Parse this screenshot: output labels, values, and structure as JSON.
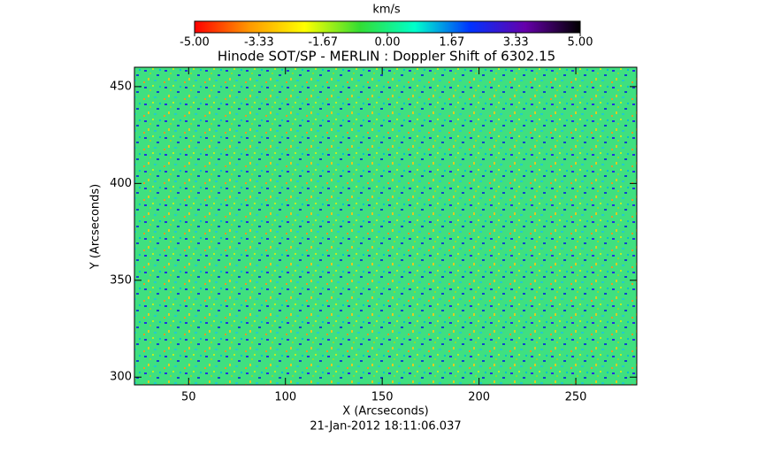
{
  "chart_data": {
    "type": "heatmap",
    "title": "Hinode SOT/SP - MERLIN : Doppler Shift of 6302.15",
    "xlabel": "X (Arcseconds)",
    "ylabel": "Y (Arcseconds)",
    "footer": "21-Jan-2012 18:11:06.037",
    "xlim": [
      22,
      281.5
    ],
    "xticks": [
      50,
      100,
      150,
      200,
      250
    ],
    "ylim": [
      296,
      460
    ],
    "yticks": [
      300,
      350,
      400,
      450
    ],
    "colorbar": {
      "label": "km/s",
      "lim": [
        -5,
        5
      ],
      "ticks": [
        {
          "value": -5,
          "label": "-5.00"
        },
        -3.33,
        -1.67,
        {
          "value": 0,
          "label": "0.00"
        },
        1.67,
        3.33,
        {
          "value": 5,
          "label": "5.00"
        }
      ],
      "colors": [
        "#ff0000",
        "#ff9900",
        "#ffff00",
        "#33dd33",
        "#00ffcc",
        "#0033ff",
        "#6600aa",
        "#000000"
      ]
    }
  }
}
